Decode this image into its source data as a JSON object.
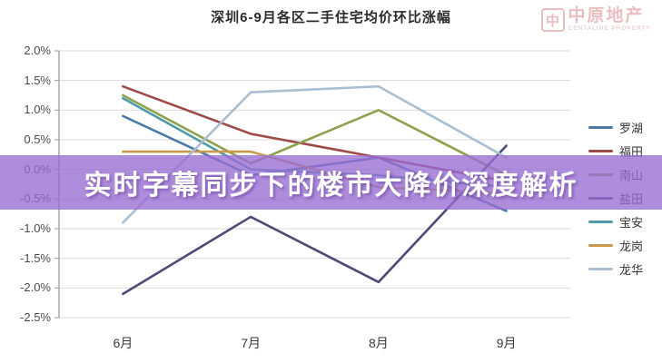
{
  "title": "深圳6-9月各区二手住宅均价环比涨幅",
  "banner": {
    "text": "实时字幕同步下的楼市大降价深度解析",
    "bg_color": "#986DD4",
    "text_color": "#ffffff"
  },
  "watermark": {
    "logo_glyph": "中",
    "name": "中原地产",
    "caption": "CENTALINE PROPERTY",
    "color": "#d88a8a"
  },
  "chart_data": {
    "type": "line",
    "title": "深圳6-9月各区二手住宅均价环比涨幅",
    "categories": [
      "6月",
      "7月",
      "8月",
      "9月"
    ],
    "unit": "%",
    "ylim": [
      -2.5,
      2.0
    ],
    "y_tick_step": 0.5,
    "y_ticks": [
      "2.0%",
      "1.5%",
      "1.0%",
      "0.5%",
      "0.0%",
      "-0.5%",
      "-1.0%",
      "-1.5%",
      "-2.0%",
      "-2.5%"
    ],
    "grid": true,
    "legend_position": "right",
    "series": [
      {
        "name": "罗湖",
        "color": "#4a7aa5",
        "values": [
          0.9,
          -0.1,
          0.2,
          -0.7
        ]
      },
      {
        "name": "福田",
        "color": "#9e4b48",
        "values": [
          1.4,
          0.6,
          0.2,
          -0.2
        ]
      },
      {
        "name": "南山",
        "color": "#8ca24e",
        "values": [
          1.25,
          0.1,
          1.0,
          -0.1
        ]
      },
      {
        "name": "盐田",
        "color": "#504a78",
        "values": [
          -2.1,
          -0.8,
          -1.9,
          0.4
        ]
      },
      {
        "name": "宝安",
        "color": "#4e9aa8",
        "values": [
          1.2,
          0.0,
          -0.1,
          -0.3
        ]
      },
      {
        "name": "龙岗",
        "color": "#c9984f",
        "values": [
          0.3,
          0.3,
          -0.3,
          -0.4
        ]
      },
      {
        "name": "龙华",
        "color": "#a9bfd1",
        "values": [
          -0.9,
          1.3,
          1.4,
          0.2
        ]
      }
    ]
  }
}
